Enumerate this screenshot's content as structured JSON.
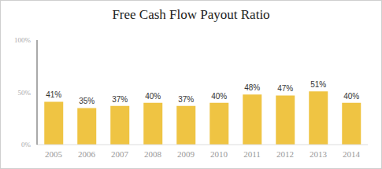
{
  "chart_data": {
    "type": "bar",
    "title": "Free Cash Flow Payout Ratio",
    "categories": [
      "2005",
      "2006",
      "2007",
      "2008",
      "2009",
      "2010",
      "2011",
      "2012",
      "2013",
      "2014"
    ],
    "values": [
      41,
      35,
      37,
      40,
      37,
      40,
      48,
      47,
      51,
      40
    ],
    "value_labels": [
      "41%",
      "35%",
      "37%",
      "40%",
      "37%",
      "40%",
      "48%",
      "47%",
      "51%",
      "40%"
    ],
    "color": "#efc443",
    "ylim": [
      0,
      100
    ],
    "yticks": [
      {
        "value": 0,
        "label": "0%"
      },
      {
        "value": 50,
        "label": "50%"
      },
      {
        "value": 100,
        "label": "100%"
      }
    ],
    "grid": false,
    "data_labels": true
  }
}
